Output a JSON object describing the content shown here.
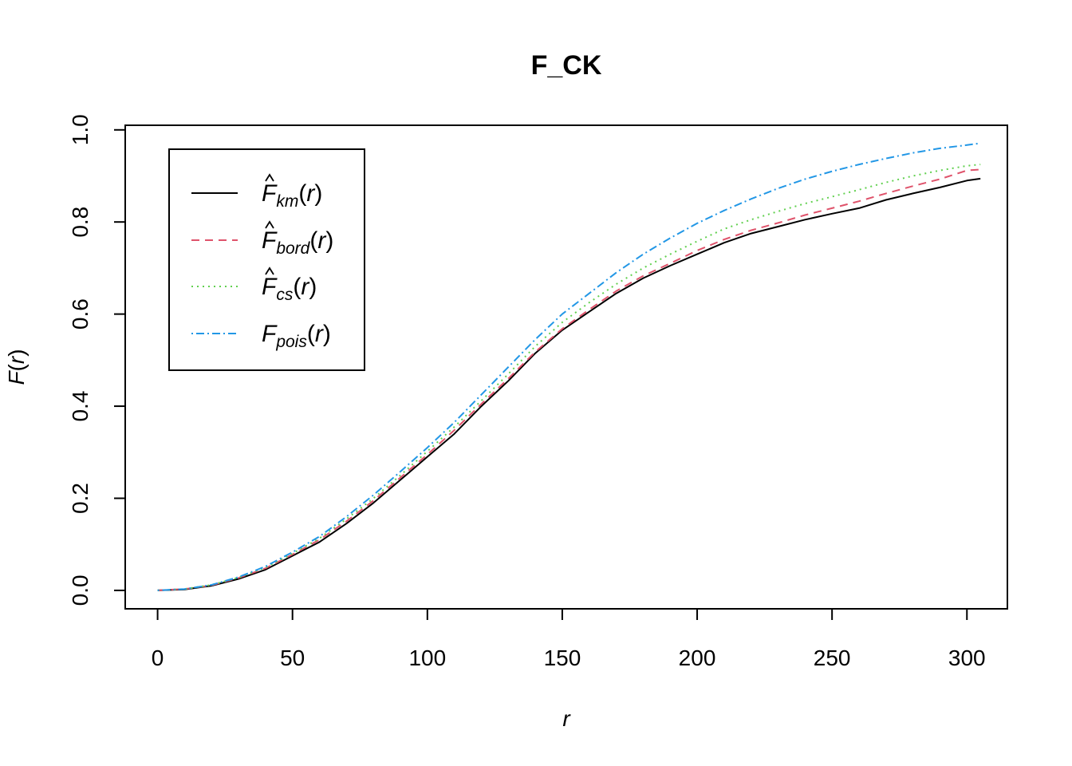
{
  "chart_data": {
    "type": "line",
    "title": "F_CK",
    "xlabel": "r",
    "ylabel": "F(r)",
    "xlim": [
      -12,
      315
    ],
    "ylim": [
      -0.04,
      1.01
    ],
    "xticks": [
      0,
      50,
      100,
      150,
      200,
      250,
      300
    ],
    "xtick_labels": [
      "0",
      "50",
      "100",
      "150",
      "200",
      "250",
      "300"
    ],
    "yticks": [
      0.0,
      0.2,
      0.4,
      0.6,
      0.8,
      1.0
    ],
    "ytick_labels": [
      "0.0",
      "0.2",
      "0.4",
      "0.6",
      "0.8",
      "1.0"
    ],
    "grid": false,
    "legend_position": "top-left",
    "x": [
      0,
      10,
      20,
      30,
      40,
      50,
      60,
      70,
      80,
      90,
      100,
      110,
      120,
      130,
      140,
      150,
      160,
      170,
      180,
      190,
      200,
      210,
      220,
      230,
      240,
      250,
      260,
      270,
      280,
      290,
      300,
      305
    ],
    "series": [
      {
        "key": "km",
        "legend_base": "F",
        "legend_sub": "km",
        "legend_arg": "(r)",
        "hat": true,
        "color": "#000000",
        "dash": "none",
        "values": [
          0.0,
          0.002,
          0.01,
          0.025,
          0.045,
          0.075,
          0.105,
          0.145,
          0.19,
          0.24,
          0.29,
          0.34,
          0.4,
          0.455,
          0.515,
          0.565,
          0.605,
          0.645,
          0.678,
          0.705,
          0.73,
          0.755,
          0.775,
          0.79,
          0.805,
          0.818,
          0.83,
          0.848,
          0.862,
          0.875,
          0.89,
          0.894
        ]
      },
      {
        "key": "bord",
        "legend_base": "F",
        "legend_sub": "bord",
        "legend_arg": "(r)",
        "hat": true,
        "color": "#DF536B",
        "dash": "10,7",
        "values": [
          0.0,
          0.003,
          0.011,
          0.027,
          0.048,
          0.078,
          0.11,
          0.15,
          0.195,
          0.245,
          0.295,
          0.348,
          0.405,
          0.46,
          0.518,
          0.568,
          0.61,
          0.65,
          0.683,
          0.71,
          0.738,
          0.762,
          0.782,
          0.798,
          0.815,
          0.83,
          0.845,
          0.862,
          0.878,
          0.893,
          0.912,
          0.914
        ]
      },
      {
        "key": "cs",
        "legend_base": "F",
        "legend_sub": "cs",
        "legend_arg": "(r)",
        "hat": true,
        "color": "#61D04F",
        "dash": "2,5",
        "values": [
          0.0,
          0.003,
          0.012,
          0.028,
          0.05,
          0.08,
          0.113,
          0.155,
          0.2,
          0.25,
          0.302,
          0.355,
          0.412,
          0.47,
          0.53,
          0.582,
          0.625,
          0.665,
          0.7,
          0.73,
          0.758,
          0.785,
          0.805,
          0.823,
          0.84,
          0.855,
          0.87,
          0.886,
          0.9,
          0.912,
          0.922,
          0.925
        ]
      },
      {
        "key": "pois",
        "legend_base": "F",
        "legend_sub": "pois",
        "legend_arg": "(r)",
        "hat": false,
        "color": "#2297E6",
        "dash": "2,4,10,4",
        "values": [
          0.0,
          0.003,
          0.012,
          0.029,
          0.052,
          0.083,
          0.117,
          0.16,
          0.207,
          0.258,
          0.31,
          0.365,
          0.425,
          0.485,
          0.545,
          0.6,
          0.645,
          0.69,
          0.73,
          0.765,
          0.797,
          0.825,
          0.85,
          0.873,
          0.893,
          0.91,
          0.925,
          0.938,
          0.95,
          0.96,
          0.967,
          0.971
        ]
      }
    ]
  }
}
